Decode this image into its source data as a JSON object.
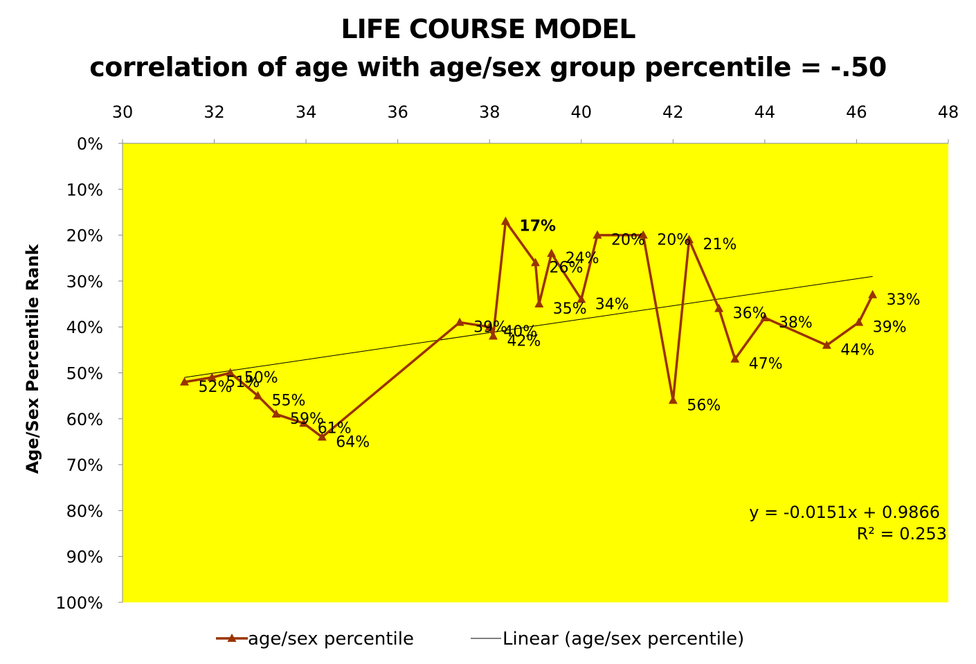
{
  "title_line1": "LIFE COURSE MODEL",
  "title_line2": "correlation of age with age/sex group percentile = -.50",
  "chart_data": {
    "type": "line",
    "title": "LIFE COURSE MODEL\ncorrelation of age with age/sex group percentile = -.50",
    "xlabel": "",
    "ylabel": "Age/Sex Percentile Rank",
    "xlim": [
      30,
      48
    ],
    "x_ticks": [
      30,
      32,
      34,
      36,
      38,
      40,
      42,
      44,
      46,
      48
    ],
    "x_tick_labels": [
      "30",
      "32",
      "34",
      "36",
      "38",
      "40",
      "42",
      "44",
      "46",
      "48"
    ],
    "x_axis_position": "top",
    "ylim": [
      0,
      1
    ],
    "y_reversed": true,
    "y_ticks": [
      0,
      0.1,
      0.2,
      0.3,
      0.4,
      0.5,
      0.6,
      0.7,
      0.8,
      0.9,
      1.0
    ],
    "y_tick_labels": [
      "0%",
      "10%",
      "20%",
      "30%",
      "40%",
      "50%",
      "60%",
      "70%",
      "80%",
      "90%",
      "100%"
    ],
    "plot_background": "#FFFF00",
    "grid": false,
    "series": [
      {
        "name": "age/sex percentile",
        "color": "#993300",
        "marker": "triangle",
        "points": [
          {
            "x": 31.35,
            "y": 0.52,
            "label": "52%"
          },
          {
            "x": 31.95,
            "y": 0.51,
            "label": "51%"
          },
          {
            "x": 32.35,
            "y": 0.5,
            "label": "50%"
          },
          {
            "x": 32.95,
            "y": 0.55,
            "label": "55%"
          },
          {
            "x": 33.35,
            "y": 0.59,
            "label": "59%"
          },
          {
            "x": 33.95,
            "y": 0.61,
            "label": "61%"
          },
          {
            "x": 34.35,
            "y": 0.64,
            "label": "64%"
          },
          {
            "x": 37.35,
            "y": 0.39,
            "label": "39%"
          },
          {
            "x": 38.0,
            "y": 0.4,
            "label": "40%"
          },
          {
            "x": 38.08,
            "y": 0.42,
            "label": "42%"
          },
          {
            "x": 38.35,
            "y": 0.17,
            "label": "17%"
          },
          {
            "x": 39.0,
            "y": 0.26,
            "label": "26%"
          },
          {
            "x": 39.08,
            "y": 0.35,
            "label": "35%"
          },
          {
            "x": 39.35,
            "y": 0.24,
            "label": "24%"
          },
          {
            "x": 40.0,
            "y": 0.34,
            "label": "34%"
          },
          {
            "x": 40.35,
            "y": 0.2,
            "label": "20%"
          },
          {
            "x": 41.35,
            "y": 0.2,
            "label": "20%"
          },
          {
            "x": 42.0,
            "y": 0.56,
            "label": "56%"
          },
          {
            "x": 42.35,
            "y": 0.21,
            "label": "21%"
          },
          {
            "x": 43.0,
            "y": 0.36,
            "label": "36%"
          },
          {
            "x": 43.35,
            "y": 0.47,
            "label": "47%"
          },
          {
            "x": 44.0,
            "y": 0.38,
            "label": "38%"
          },
          {
            "x": 45.35,
            "y": 0.44,
            "label": "44%"
          },
          {
            "x": 46.05,
            "y": 0.39,
            "label": "39%"
          },
          {
            "x": 46.35,
            "y": 0.33,
            "label": "33%"
          }
        ]
      },
      {
        "name": "Linear (age/sex percentile)",
        "color": "#000000",
        "type": "trendline",
        "x_range": [
          31.35,
          46.35
        ],
        "y_range": [
          0.51,
          0.29
        ]
      }
    ],
    "trendline_equation": "y = -0.0151x + 0.9866",
    "trendline_r2": "R² = 0.253",
    "legend": [
      "age/sex percentile",
      "Linear (age/sex percentile)"
    ],
    "legend_position": "bottom"
  }
}
